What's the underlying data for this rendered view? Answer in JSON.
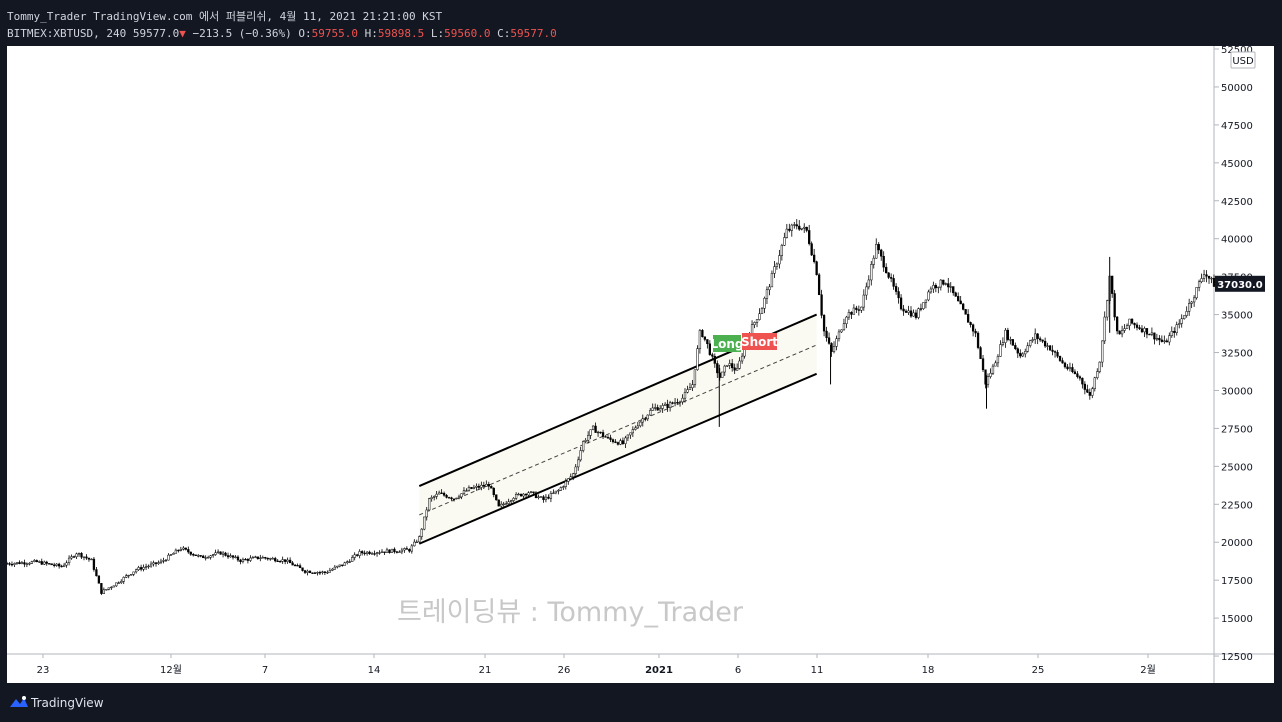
{
  "header": {
    "publish_line": "Tommy_Trader TradingView.com 에서 퍼블리쉬, 4월 11, 2021 21:21:00 KST",
    "symbol_interval": "BITMEX:XBTUSD, 240",
    "last": "59577.0",
    "change": "−213.5 (−0.36%)",
    "o_label": "O:",
    "o_value": "59755.0",
    "h_label": "H:",
    "h_value": "59898.5",
    "l_label": "L:",
    "l_value": "59560.0",
    "c_label": "C:",
    "c_value": "59577.0"
  },
  "footer": {
    "brand": "TradingView"
  },
  "chart_data": {
    "type": "candlestick",
    "currency": "USD",
    "current_price_label": "37030.0",
    "current_price": 37030,
    "ylim": [
      10000,
      52500
    ],
    "y_ticks": [
      52500,
      50000,
      47500,
      45000,
      42500,
      40000,
      37500,
      35000,
      32500,
      30000,
      27500,
      25000,
      22500,
      20000,
      17500,
      15000,
      12500
    ],
    "x_ticks": [
      {
        "label": "23",
        "bold": false
      },
      {
        "label": "12월",
        "bold": false
      },
      {
        "label": "7",
        "bold": false
      },
      {
        "label": "14",
        "bold": false
      },
      {
        "label": "21",
        "bold": false
      },
      {
        "label": "26",
        "bold": false
      },
      {
        "label": "2021",
        "bold": true
      },
      {
        "label": "6",
        "bold": false
      },
      {
        "label": "11",
        "bold": false
      },
      {
        "label": "18",
        "bold": false
      },
      {
        "label": "25",
        "bold": false
      },
      {
        "label": "2월",
        "bold": false
      }
    ],
    "watermark": "트레이딩뷰 : Tommy_Trader",
    "annotations": [
      {
        "text": "Long",
        "color": "#4caf50"
      },
      {
        "text": "Short",
        "color": "#ef5350"
      }
    ],
    "price_path": [
      [
        0,
        18600
      ],
      [
        0.03,
        18700
      ],
      [
        0.055,
        18400
      ],
      [
        0.07,
        19300
      ],
      [
        0.085,
        18800
      ],
      [
        0.095,
        16700
      ],
      [
        0.11,
        17300
      ],
      [
        0.13,
        18200
      ],
      [
        0.155,
        18700
      ],
      [
        0.175,
        19600
      ],
      [
        0.195,
        19000
      ],
      [
        0.215,
        19300
      ],
      [
        0.235,
        18800
      ],
      [
        0.255,
        19000
      ],
      [
        0.28,
        18800
      ],
      [
        0.3,
        18100
      ],
      [
        0.32,
        18000
      ],
      [
        0.34,
        18600
      ],
      [
        0.355,
        19300
      ],
      [
        0.38,
        19400
      ],
      [
        0.405,
        19500
      ],
      [
        0.415,
        20300
      ],
      [
        0.425,
        22800
      ],
      [
        0.435,
        23200
      ],
      [
        0.45,
        22900
      ],
      [
        0.465,
        23500
      ],
      [
        0.485,
        23800
      ],
      [
        0.495,
        22300
      ],
      [
        0.51,
        23000
      ],
      [
        0.525,
        23300
      ],
      [
        0.54,
        22800
      ],
      [
        0.555,
        23400
      ],
      [
        0.57,
        24500
      ],
      [
        0.58,
        26600
      ],
      [
        0.59,
        27500
      ],
      [
        0.605,
        26800
      ],
      [
        0.62,
        26500
      ],
      [
        0.635,
        27800
      ],
      [
        0.65,
        28800
      ],
      [
        0.665,
        29000
      ],
      [
        0.68,
        29500
      ],
      [
        0.69,
        30400
      ],
      [
        0.698,
        34000
      ],
      [
        0.705,
        33000
      ],
      [
        0.712,
        31700
      ],
      [
        0.718,
        30800
      ],
      [
        0.725,
        31800
      ],
      [
        0.735,
        31300
      ],
      [
        0.745,
        33500
      ],
      [
        0.76,
        35500
      ],
      [
        0.775,
        38500
      ],
      [
        0.785,
        40500
      ],
      [
        0.795,
        40900
      ],
      [
        0.805,
        40500
      ],
      [
        0.815,
        37800
      ],
      [
        0.822,
        34000
      ],
      [
        0.83,
        32500
      ],
      [
        0.845,
        35000
      ],
      [
        0.86,
        35500
      ],
      [
        0.875,
        39500
      ],
      [
        0.888,
        37500
      ],
      [
        0.9,
        35500
      ],
      [
        0.915,
        34900
      ],
      [
        0.93,
        36800
      ],
      [
        0.945,
        37200
      ],
      [
        0.96,
        35500
      ],
      [
        0.975,
        33700
      ],
      [
        0.985,
        30500
      ],
      [
        0.993,
        31600
      ],
      [
        1.005,
        33800
      ],
      [
        1.02,
        32300
      ],
      [
        1.035,
        33600
      ],
      [
        1.05,
        32800
      ],
      [
        1.065,
        31600
      ],
      [
        1.08,
        30800
      ],
      [
        1.09,
        29600
      ],
      [
        1.1,
        32000
      ],
      [
        1.11,
        37500
      ],
      [
        1.118,
        33500
      ],
      [
        1.13,
        34500
      ],
      [
        1.15,
        33800
      ],
      [
        1.165,
        33100
      ],
      [
        1.18,
        34400
      ],
      [
        1.195,
        36300
      ],
      [
        1.205,
        37800
      ],
      [
        1.215,
        37000
      ]
    ],
    "channel": {
      "upper": [
        [
          0.415,
          23700
        ],
        [
          0.815,
          35000
        ]
      ],
      "lower": [
        [
          0.415,
          19900
        ],
        [
          0.815,
          31100
        ]
      ],
      "mid": [
        [
          0.415,
          21800
        ],
        [
          0.815,
          33000
        ]
      ]
    }
  }
}
